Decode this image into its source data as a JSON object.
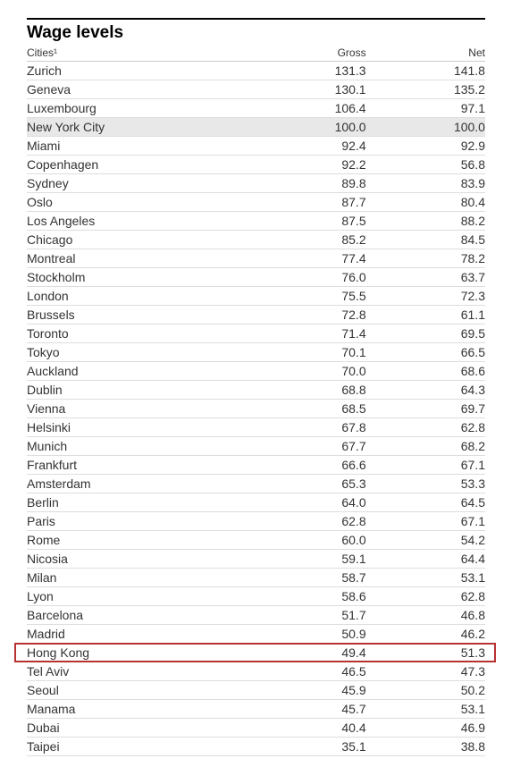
{
  "title": "Wage levels",
  "table": {
    "columns": {
      "city": "Cities¹",
      "gross": "Gross",
      "net": "Net"
    },
    "column_widths": {
      "city": "48%",
      "gross": "26%",
      "net": "26%"
    },
    "column_align": {
      "city": "left",
      "gross": "right",
      "net": "right"
    },
    "font_family": "Arial, Helvetica, sans-serif",
    "title_fontsize": 19,
    "header_fontsize": 12,
    "cell_fontsize": 14,
    "border_color_top": "#000000",
    "row_border_color": "#dddddd",
    "shaded_row_color": "#e8e8e8",
    "highlight_border_color": "#b83232",
    "rows": [
      {
        "city": "Zurich",
        "gross": "131.3",
        "net": "141.8"
      },
      {
        "city": "Geneva",
        "gross": "130.1",
        "net": "135.2"
      },
      {
        "city": "Luxembourg",
        "gross": "106.4",
        "net": "97.1"
      },
      {
        "city": "New York City",
        "gross": "100.0",
        "net": "100.0",
        "shaded": true
      },
      {
        "city": "Miami",
        "gross": "92.4",
        "net": "92.9"
      },
      {
        "city": "Copenhagen",
        "gross": "92.2",
        "net": "56.8"
      },
      {
        "city": "Sydney",
        "gross": "89.8",
        "net": "83.9"
      },
      {
        "city": "Oslo",
        "gross": "87.7",
        "net": "80.4"
      },
      {
        "city": "Los Angeles",
        "gross": "87.5",
        "net": "88.2"
      },
      {
        "city": "Chicago",
        "gross": "85.2",
        "net": "84.5"
      },
      {
        "city": "Montreal",
        "gross": "77.4",
        "net": "78.2"
      },
      {
        "city": "Stockholm",
        "gross": "76.0",
        "net": "63.7"
      },
      {
        "city": "London",
        "gross": "75.5",
        "net": "72.3"
      },
      {
        "city": "Brussels",
        "gross": "72.8",
        "net": "61.1"
      },
      {
        "city": "Toronto",
        "gross": "71.4",
        "net": "69.5"
      },
      {
        "city": "Tokyo",
        "gross": "70.1",
        "net": "66.5"
      },
      {
        "city": "Auckland",
        "gross": "70.0",
        "net": "68.6"
      },
      {
        "city": "Dublin",
        "gross": "68.8",
        "net": "64.3"
      },
      {
        "city": "Vienna",
        "gross": "68.5",
        "net": "69.7"
      },
      {
        "city": "Helsinki",
        "gross": "67.8",
        "net": "62.8"
      },
      {
        "city": "Munich",
        "gross": "67.7",
        "net": "68.2"
      },
      {
        "city": "Frankfurt",
        "gross": "66.6",
        "net": "67.1"
      },
      {
        "city": "Amsterdam",
        "gross": "65.3",
        "net": "53.3"
      },
      {
        "city": "Berlin",
        "gross": "64.0",
        "net": "64.5"
      },
      {
        "city": "Paris",
        "gross": "62.8",
        "net": "67.1"
      },
      {
        "city": "Rome",
        "gross": "60.0",
        "net": "54.2"
      },
      {
        "city": "Nicosia",
        "gross": "59.1",
        "net": "64.4"
      },
      {
        "city": "Milan",
        "gross": "58.7",
        "net": "53.1"
      },
      {
        "city": "Lyon",
        "gross": "58.6",
        "net": "62.8"
      },
      {
        "city": "Barcelona",
        "gross": "51.7",
        "net": "46.8"
      },
      {
        "city": "Madrid",
        "gross": "50.9",
        "net": "46.2"
      },
      {
        "city": "Hong Kong",
        "gross": "49.4",
        "net": "51.3",
        "highlighted": true
      },
      {
        "city": "Tel Aviv",
        "gross": "46.5",
        "net": "47.3"
      },
      {
        "city": "Seoul",
        "gross": "45.9",
        "net": "50.2"
      },
      {
        "city": "Manama",
        "gross": "45.7",
        "net": "53.1"
      },
      {
        "city": "Dubai",
        "gross": "40.4",
        "net": "46.9"
      },
      {
        "city": "Taipei",
        "gross": "35.1",
        "net": "38.8"
      }
    ]
  }
}
